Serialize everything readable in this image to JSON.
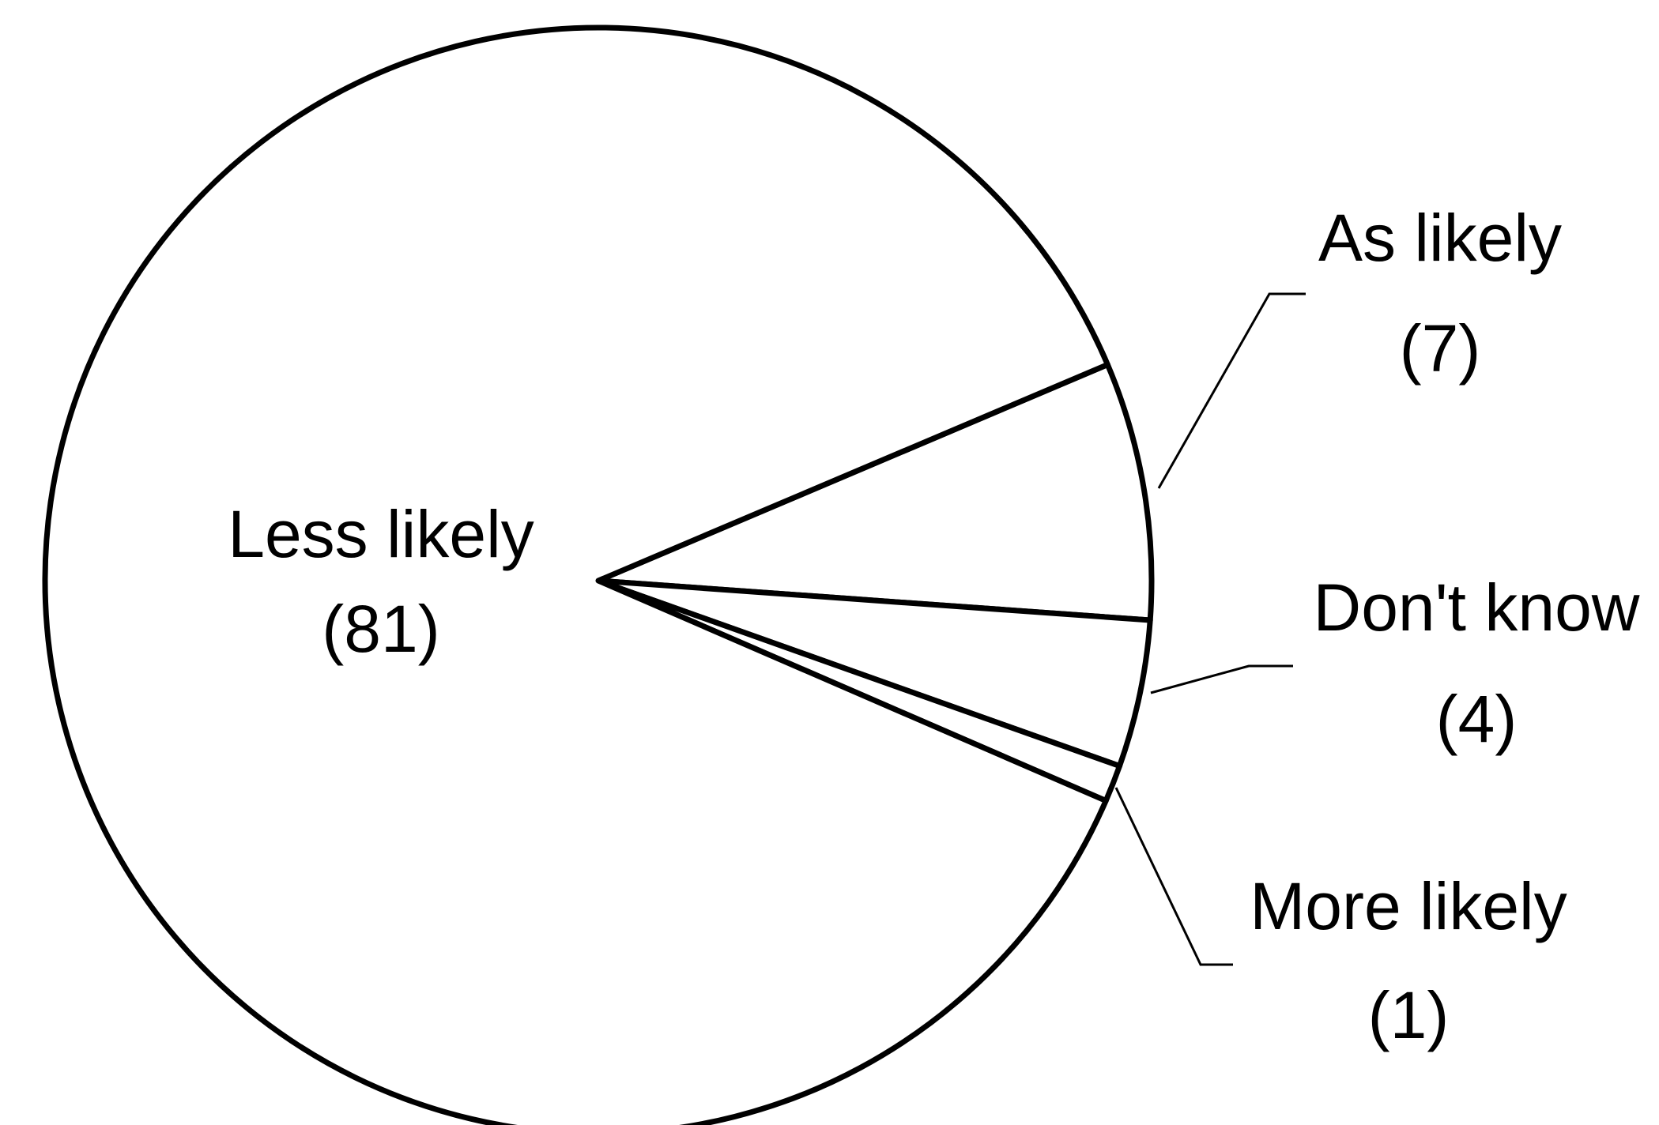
{
  "chart_data": {
    "type": "pie",
    "categories": [
      "As likely",
      "Don't know",
      "More likely",
      "Less likely"
    ],
    "values": [
      7,
      4,
      1,
      81
    ],
    "value_labels": [
      "(7)",
      "(4)",
      "(1)",
      "(81)"
    ],
    "color": "#ffffff"
  }
}
